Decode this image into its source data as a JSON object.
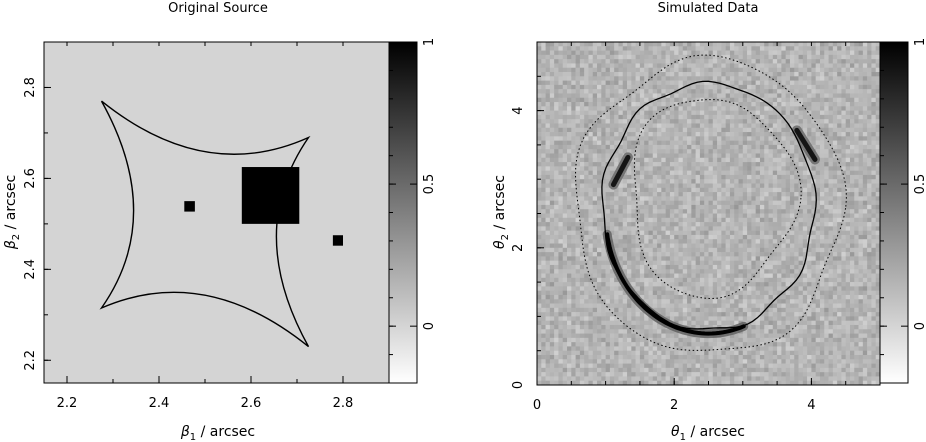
{
  "chart_data": [
    {
      "type": "heatmap",
      "title": "Original Source",
      "xlabel_symbol": "β",
      "xlabel_sub": "1",
      "xlabel_unit": "/ arcsec",
      "ylabel_symbol": "β",
      "ylabel_sub": "2",
      "ylabel_unit": "/ arcsec",
      "xlim": [
        2.15,
        2.9
      ],
      "ylim": [
        2.15,
        2.9
      ],
      "xticks": [
        2.2,
        2.4,
        2.6,
        2.8
      ],
      "yticks": [
        2.2,
        2.4,
        2.6,
        2.8
      ],
      "background_level": 0.15,
      "sources": [
        {
          "name": "large-square-source",
          "x0": 2.58,
          "x1": 2.705,
          "y0": 2.5,
          "y1": 2.625,
          "level": 1
        },
        {
          "name": "small-square-source-left",
          "x0": 2.455,
          "x1": 2.478,
          "y0": 2.527,
          "y1": 2.55,
          "level": 1
        },
        {
          "name": "small-square-source-right",
          "x0": 2.778,
          "x1": 2.8,
          "y0": 2.452,
          "y1": 2.475,
          "level": 1
        }
      ],
      "caustic": {
        "cusps": [
          [
            2.275,
            2.77
          ],
          [
            2.725,
            2.69
          ],
          [
            2.725,
            2.23
          ],
          [
            2.275,
            2.315
          ]
        ],
        "center": [
          2.5,
          2.5
        ]
      },
      "colorbar": {
        "min": -0.2,
        "max": 1,
        "ticks": [
          0,
          0.5,
          1
        ],
        "tick_labels": [
          "0",
          "0.5",
          "1"
        ]
      }
    },
    {
      "type": "heatmap",
      "title": "Simulated Data",
      "xlabel_symbol": "θ",
      "xlabel_sub": "1",
      "xlabel_unit": "/ arcsec",
      "ylabel_symbol": "θ",
      "ylabel_sub": "2",
      "ylabel_unit": "/ arcsec",
      "xlim": [
        0,
        5
      ],
      "ylim": [
        0,
        5
      ],
      "xticks": [
        0,
        2,
        4
      ],
      "yticks": [
        0,
        2,
        4
      ],
      "noise_level": 0.15,
      "arcs": [
        {
          "name": "bottom-arc",
          "center": [
            2.5,
            2.5
          ],
          "rx": 1.5,
          "ry": 1.75,
          "start_deg": 190,
          "end_deg": 290,
          "level": 1
        },
        {
          "name": "upper-left-image",
          "center": [
            1.22,
            3.12
          ],
          "length": 0.45,
          "angle_deg": 62,
          "level": 0.9
        },
        {
          "name": "upper-right-image",
          "center": [
            3.92,
            3.5
          ],
          "length": 0.5,
          "angle_deg": -58,
          "level": 0.9
        }
      ],
      "mask_outer": {
        "center": [
          2.5,
          2.6
        ],
        "rx": 1.95,
        "ry": 2.15
      },
      "mask_inner": {
        "center": [
          2.55,
          2.75
        ],
        "rx": 1.2,
        "ry": 1.45
      },
      "critical_curve": {
        "center": [
          2.5,
          2.6
        ],
        "rx": 1.55,
        "ry": 1.8
      },
      "colorbar": {
        "min": -0.2,
        "max": 1,
        "ticks": [
          0,
          0.5,
          1
        ],
        "tick_labels": [
          "0",
          "0.5",
          "1"
        ]
      }
    }
  ]
}
